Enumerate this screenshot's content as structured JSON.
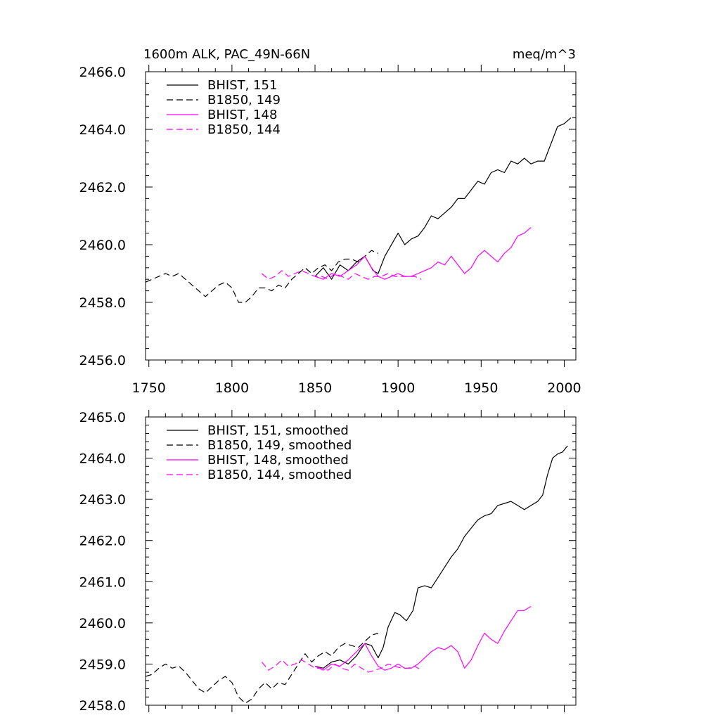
{
  "chart_data": [
    {
      "type": "line",
      "title": "1600m ALK, PAC_49N-66N",
      "units": "meq/m^3",
      "xlim": [
        1748,
        2007
      ],
      "ylim": [
        2456.0,
        2466.0
      ],
      "xticks": [
        1750,
        1800,
        1850,
        1900,
        1950,
        2000
      ],
      "yticks": [
        "2456.0",
        "2458.0",
        "2460.0",
        "2462.0",
        "2464.0",
        "2466.0"
      ],
      "legend_position": "top-left",
      "series": [
        {
          "name": "BHIST, 151",
          "color": "#000000",
          "dash": "solid",
          "x": [
            1850,
            1855,
            1860,
            1865,
            1870,
            1875,
            1880,
            1885,
            1888,
            1892,
            1895,
            1898,
            1900,
            1904,
            1908,
            1912,
            1916,
            1920,
            1924,
            1928,
            1932,
            1936,
            1940,
            1944,
            1948,
            1952,
            1956,
            1960,
            1964,
            1968,
            1972,
            1976,
            1980,
            1984,
            1988,
            1992,
            1996,
            2000,
            2004
          ],
          "y": [
            2458.9,
            2459.2,
            2458.8,
            2459.3,
            2459.1,
            2459.4,
            2459.6,
            2459.1,
            2459.0,
            2459.6,
            2459.9,
            2460.2,
            2460.4,
            2460.0,
            2460.2,
            2460.3,
            2460.6,
            2461.0,
            2460.9,
            2461.1,
            2461.3,
            2461.6,
            2461.6,
            2461.9,
            2462.2,
            2462.1,
            2462.5,
            2462.6,
            2462.5,
            2462.9,
            2462.8,
            2463.0,
            2462.8,
            2462.9,
            2462.9,
            2463.5,
            2464.1,
            2464.2,
            2464.4
          ]
        },
        {
          "name": "B1850, 149",
          "color": "#000000",
          "dash": "dashed",
          "x": [
            1748,
            1752,
            1756,
            1760,
            1764,
            1768,
            1772,
            1776,
            1780,
            1784,
            1788,
            1792,
            1796,
            1800,
            1804,
            1808,
            1812,
            1816,
            1820,
            1824,
            1828,
            1832,
            1836,
            1840,
            1844,
            1848,
            1852,
            1856,
            1860,
            1864,
            1868,
            1872,
            1876,
            1880,
            1884,
            1888
          ],
          "y": [
            2458.7,
            2458.8,
            2458.9,
            2459.0,
            2458.9,
            2459.0,
            2458.8,
            2458.6,
            2458.4,
            2458.2,
            2458.4,
            2458.6,
            2458.7,
            2458.5,
            2458.0,
            2458.0,
            2458.2,
            2458.5,
            2458.5,
            2458.4,
            2458.6,
            2458.5,
            2458.8,
            2459.0,
            2459.2,
            2459.0,
            2459.2,
            2459.3,
            2459.1,
            2459.4,
            2459.5,
            2459.5,
            2459.4,
            2459.6,
            2459.8,
            2459.7
          ]
        },
        {
          "name": "BHIST, 148",
          "color": "#ff00ff",
          "dash": "solid",
          "x": [
            1850,
            1855,
            1860,
            1865,
            1870,
            1875,
            1880,
            1884,
            1888,
            1892,
            1896,
            1900,
            1904,
            1908,
            1912,
            1916,
            1920,
            1924,
            1928,
            1932,
            1936,
            1940,
            1944,
            1948,
            1952,
            1956,
            1960,
            1964,
            1968,
            1972,
            1976,
            1980
          ],
          "y": [
            2458.9,
            2458.8,
            2459.0,
            2458.9,
            2459.1,
            2459.3,
            2459.6,
            2459.2,
            2458.9,
            2458.8,
            2458.9,
            2459.0,
            2458.9,
            2458.9,
            2459.0,
            2459.1,
            2459.2,
            2459.4,
            2459.3,
            2459.6,
            2459.3,
            2459.0,
            2459.2,
            2459.6,
            2459.8,
            2459.6,
            2459.4,
            2459.7,
            2459.9,
            2460.3,
            2460.4,
            2460.6
          ]
        },
        {
          "name": "B1850, 144",
          "color": "#ff00ff",
          "dash": "dashed",
          "x": [
            1818,
            1822,
            1826,
            1830,
            1834,
            1838,
            1842,
            1846,
            1850,
            1854,
            1858,
            1862,
            1866,
            1870,
            1874,
            1878,
            1882,
            1886,
            1890,
            1894,
            1898,
            1902,
            1906,
            1910,
            1914
          ],
          "y": [
            2459.0,
            2458.8,
            2458.9,
            2459.1,
            2458.9,
            2459.0,
            2459.1,
            2459.0,
            2458.9,
            2458.9,
            2458.8,
            2459.0,
            2458.9,
            2458.8,
            2459.0,
            2458.9,
            2458.8,
            2458.9,
            2458.9,
            2459.0,
            2458.9,
            2458.9,
            2458.9,
            2458.9,
            2458.8
          ]
        }
      ]
    },
    {
      "type": "line",
      "title": "",
      "units": "",
      "xlim": [
        1748,
        2007
      ],
      "ylim": [
        2458.0,
        2465.0
      ],
      "xticks": [
        1750,
        1800,
        1850,
        1900,
        1950,
        2000
      ],
      "yticks": [
        "2458.0",
        "2459.0",
        "2460.0",
        "2461.0",
        "2462.0",
        "2463.0",
        "2464.0",
        "2465.0"
      ],
      "legend_position": "top-left",
      "series": [
        {
          "name": "BHIST, 151, smoothed",
          "color": "#000000",
          "dash": "solid",
          "x": [
            1850,
            1855,
            1860,
            1865,
            1870,
            1875,
            1880,
            1884,
            1888,
            1891,
            1894,
            1898,
            1901,
            1905,
            1909,
            1912,
            1916,
            1920,
            1924,
            1928,
            1932,
            1936,
            1940,
            1944,
            1948,
            1952,
            1956,
            1960,
            1964,
            1968,
            1972,
            1976,
            1980,
            1984,
            1987,
            1990,
            1993,
            1996,
            1999,
            2002
          ],
          "y": [
            2458.95,
            2458.9,
            2459.05,
            2459.1,
            2459.0,
            2459.2,
            2459.5,
            2459.45,
            2459.15,
            2459.4,
            2459.9,
            2460.25,
            2460.2,
            2460.05,
            2460.3,
            2460.85,
            2460.9,
            2460.85,
            2461.1,
            2461.35,
            2461.6,
            2461.8,
            2462.1,
            2462.3,
            2462.5,
            2462.6,
            2462.65,
            2462.85,
            2462.9,
            2462.95,
            2462.85,
            2462.75,
            2462.85,
            2462.95,
            2463.1,
            2463.6,
            2464.0,
            2464.1,
            2464.15,
            2464.3
          ]
        },
        {
          "name": "B1850, 149, smoothed",
          "color": "#000000",
          "dash": "dashed",
          "x": [
            1748,
            1752,
            1756,
            1760,
            1764,
            1768,
            1772,
            1776,
            1780,
            1784,
            1788,
            1792,
            1796,
            1800,
            1804,
            1808,
            1812,
            1816,
            1820,
            1824,
            1828,
            1832,
            1836,
            1840,
            1844,
            1848,
            1852,
            1856,
            1860,
            1864,
            1868,
            1872,
            1876,
            1880,
            1884,
            1888
          ],
          "y": [
            2458.7,
            2458.75,
            2458.9,
            2459.0,
            2458.9,
            2458.95,
            2458.8,
            2458.6,
            2458.4,
            2458.3,
            2458.45,
            2458.6,
            2458.7,
            2458.55,
            2458.2,
            2458.05,
            2458.15,
            2458.4,
            2458.55,
            2458.4,
            2458.55,
            2458.5,
            2458.75,
            2459.0,
            2459.25,
            2459.05,
            2459.2,
            2459.3,
            2459.2,
            2459.4,
            2459.5,
            2459.45,
            2459.4,
            2459.55,
            2459.7,
            2459.75
          ]
        },
        {
          "name": "BHIST, 148, smoothed",
          "color": "#ff00ff",
          "dash": "solid",
          "x": [
            1850,
            1855,
            1860,
            1865,
            1870,
            1875,
            1880,
            1884,
            1888,
            1892,
            1896,
            1900,
            1904,
            1908,
            1912,
            1916,
            1920,
            1924,
            1928,
            1932,
            1936,
            1940,
            1944,
            1948,
            1952,
            1956,
            1960,
            1964,
            1968,
            1972,
            1976,
            1980
          ],
          "y": [
            2458.95,
            2458.85,
            2459.0,
            2458.95,
            2459.1,
            2459.3,
            2459.5,
            2459.2,
            2458.95,
            2458.85,
            2458.9,
            2459.0,
            2458.9,
            2458.9,
            2459.0,
            2459.15,
            2459.3,
            2459.4,
            2459.35,
            2459.45,
            2459.3,
            2458.9,
            2459.1,
            2459.45,
            2459.75,
            2459.6,
            2459.5,
            2459.8,
            2460.05,
            2460.3,
            2460.3,
            2460.4
          ]
        },
        {
          "name": "B1850, 144, smoothed",
          "color": "#ff00ff",
          "dash": "dashed",
          "x": [
            1818,
            1822,
            1826,
            1830,
            1834,
            1838,
            1842,
            1846,
            1850,
            1854,
            1858,
            1862,
            1866,
            1870,
            1874,
            1878,
            1882,
            1886,
            1890,
            1894,
            1898,
            1902,
            1906,
            1910,
            1914
          ],
          "y": [
            2459.05,
            2458.85,
            2458.95,
            2459.1,
            2458.95,
            2459.0,
            2459.1,
            2459.0,
            2458.9,
            2458.9,
            2458.85,
            2459.0,
            2458.9,
            2458.85,
            2459.0,
            2458.9,
            2458.8,
            2458.85,
            2458.9,
            2459.0,
            2458.95,
            2458.9,
            2458.9,
            2458.95,
            2458.85
          ]
        }
      ]
    }
  ]
}
